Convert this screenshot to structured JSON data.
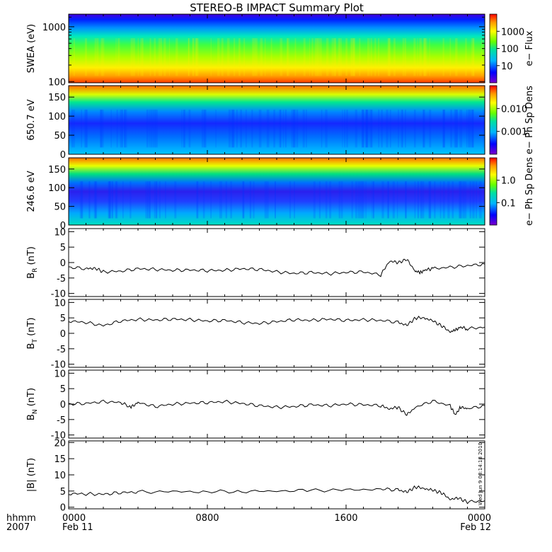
{
  "title": "STEREO-B IMPACT Summary Plot",
  "x_axis": {
    "label_row1": "hhmm",
    "label_row2": "2007",
    "ticks": [
      {
        "t": 0,
        "top": "0000",
        "bottom": "Feb 11"
      },
      {
        "t": 8,
        "top": "0800",
        "bottom": ""
      },
      {
        "t": 16,
        "top": "1600",
        "bottom": ""
      },
      {
        "t": 24,
        "top": "0000",
        "bottom": "Feb 12"
      }
    ]
  },
  "timestamp": "Wed Jun  9 08:14:18 2010",
  "colorbars": [
    {
      "label": "e− Flux",
      "ticks": [
        "1000",
        "100",
        "10"
      ]
    },
    {
      "label": "e− Ph Sp Dens",
      "ticks": [
        "0.010",
        "0.001"
      ]
    },
    {
      "label": "e− Ph Sp Dens",
      "ticks": [
        "1.0",
        "0.1"
      ]
    }
  ],
  "chart_data": [
    {
      "type": "heatmap",
      "panel": "SWEA",
      "ylabel": "SWEA (eV)",
      "yscale": "log",
      "ylim": [
        95,
        1700
      ],
      "yticks": [
        "1000",
        "100"
      ],
      "x_range_hours": [
        0,
        24
      ],
      "colorbar": "e− Flux",
      "description_values": "flux high (red) below ~150 eV, green near 500 eV, blue above ~1200 eV"
    },
    {
      "type": "heatmap",
      "panel": "650.7 eV pitch angle",
      "ylabel": "650.7 eV",
      "ylim": [
        0,
        180
      ],
      "yticks": [
        "150",
        "100",
        "50",
        "0"
      ],
      "x_range_hours": [
        0,
        24
      ],
      "colorbar": "e− Ph Sp Dens"
    },
    {
      "type": "heatmap",
      "panel": "246.6 eV pitch angle",
      "ylabel": "246.6 eV",
      "ylim": [
        0,
        180
      ],
      "yticks": [
        "150",
        "100",
        "50",
        "0"
      ],
      "x_range_hours": [
        0,
        24
      ],
      "colorbar": "e− Ph Sp Dens"
    },
    {
      "type": "line",
      "panel": "BR",
      "ylabel": "B_R (nT)",
      "ylim": [
        -11,
        11
      ],
      "yticks": [
        "10",
        "5",
        "0",
        "-5",
        "-10"
      ],
      "x": [
        0,
        1,
        1.5,
        2,
        3,
        4,
        5,
        6,
        7,
        8,
        9,
        10,
        11,
        12,
        13,
        14,
        15,
        16,
        17,
        18,
        18.5,
        19,
        19.5,
        20,
        20.3,
        20.6,
        21,
        22,
        23,
        24
      ],
      "y": [
        -1.5,
        -2,
        -1.8,
        -3,
        -2.8,
        -2,
        -2.2,
        -2.5,
        -2.4,
        -2.6,
        -2.5,
        -2,
        -2.2,
        -3,
        -3.5,
        -3.2,
        -3.6,
        -3.2,
        -3,
        -4,
        0.5,
        0,
        1,
        -2.8,
        -3.2,
        -2.3,
        -2,
        -1.5,
        -1,
        -0.5
      ]
    },
    {
      "type": "line",
      "panel": "BT",
      "ylabel": "B_T (nT)",
      "ylim": [
        -11,
        11
      ],
      "yticks": [
        "10",
        "5",
        "0",
        "-5",
        "-10"
      ],
      "x": [
        0,
        1,
        2,
        3,
        4,
        5,
        6,
        7,
        8,
        9,
        10,
        11,
        12,
        13,
        14,
        15,
        16,
        17,
        18,
        19,
        19.5,
        20,
        20.5,
        21,
        21.5,
        22,
        22.3,
        22.6,
        23,
        24
      ],
      "y": [
        4,
        3.5,
        2.5,
        4,
        4.5,
        4.3,
        4.6,
        4.4,
        4,
        4.2,
        3.5,
        3.2,
        3.8,
        4.4,
        4.2,
        4.6,
        4.2,
        4.4,
        4.2,
        3.6,
        2.5,
        5,
        5,
        4,
        2.5,
        0.5,
        1,
        2,
        1.5,
        2
      ]
    },
    {
      "type": "line",
      "panel": "BN",
      "ylabel": "B_N (nT)",
      "ylim": [
        -11,
        11
      ],
      "yticks": [
        "10",
        "5",
        "0",
        "-5",
        "-10"
      ],
      "x": [
        0,
        1,
        2,
        3,
        3.6,
        4,
        5,
        6,
        7,
        8,
        9,
        10,
        11,
        12,
        13,
        14,
        15,
        16,
        17,
        18,
        18.5,
        19,
        19.5,
        20,
        21,
        22,
        22.3,
        22.6,
        23,
        24
      ],
      "y": [
        0,
        0.2,
        0.8,
        0.5,
        -1,
        0.5,
        -0.8,
        0,
        0.3,
        0.5,
        0.8,
        0.2,
        -0.5,
        -1,
        -0.8,
        -0.2,
        -0.5,
        0,
        -0.2,
        -0.5,
        -1.5,
        -1,
        -3.5,
        -1,
        1,
        -0.5,
        -3.5,
        -1,
        -1.5,
        -0.5
      ]
    },
    {
      "type": "line",
      "panel": "|B|",
      "ylabel": "|B| (nT)",
      "ylim": [
        -0.5,
        20.5
      ],
      "yticks": [
        "20",
        "15",
        "10",
        "5",
        "0"
      ],
      "x": [
        0,
        1,
        2,
        3,
        4,
        6,
        8,
        10,
        12,
        14,
        16,
        18,
        19,
        19.5,
        20,
        20.5,
        21,
        21.5,
        22,
        22.5,
        23,
        24
      ],
      "y": [
        4.2,
        4.1,
        4,
        4.5,
        4.7,
        4.8,
        4.8,
        4.9,
        5,
        5.2,
        5.3,
        5.6,
        5.4,
        4.6,
        6.3,
        5.8,
        5.2,
        4.5,
        2.5,
        2.8,
        1.6,
        2
      ]
    }
  ]
}
